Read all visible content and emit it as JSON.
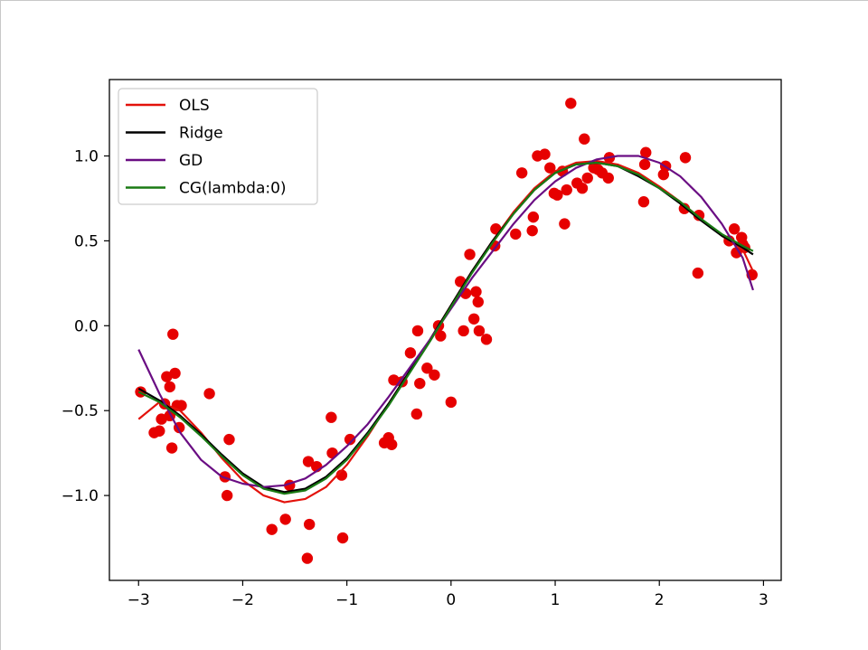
{
  "chart_data": {
    "type": "scatter",
    "title": "",
    "xlabel": "",
    "ylabel": "",
    "xlim": [
      -3.28,
      3.17
    ],
    "ylim": [
      -1.5,
      1.45
    ],
    "xticks": [
      -3,
      -2,
      -1,
      0,
      1,
      2,
      3
    ],
    "yticks": [
      -1.0,
      -0.5,
      0.0,
      0.5,
      1.0
    ],
    "xtick_labels": [
      "−3",
      "−2",
      "−1",
      "0",
      "1",
      "2",
      "3"
    ],
    "ytick_labels": [
      "−1.0",
      "−0.5",
      "0.0",
      "0.5",
      "1.0"
    ],
    "legend_position": "upper-left",
    "grid": false,
    "scatter_points": {
      "color": "#e60000",
      "x": [
        -2.98,
        -2.85,
        -2.8,
        -2.78,
        -2.75,
        -2.73,
        -2.7,
        -2.68,
        -2.65,
        -2.63,
        -2.61,
        -2.59,
        -2.7,
        -2.67,
        -2.32,
        -2.17,
        -2.15,
        -2.13,
        -1.72,
        -1.59,
        -1.55,
        -1.38,
        -1.36,
        -1.37,
        -1.29,
        -1.15,
        -1.14,
        -1.04,
        -1.05,
        -0.97,
        -0.64,
        -0.6,
        -0.57,
        -0.55,
        -0.47,
        -0.39,
        -0.33,
        -0.32,
        -0.3,
        -0.23,
        -0.16,
        -0.12,
        -0.1,
        0.0,
        0.09,
        0.12,
        0.14,
        0.18,
        0.22,
        0.24,
        0.26,
        0.27,
        0.34,
        0.42,
        0.43,
        0.62,
        0.68,
        0.78,
        0.79,
        0.83,
        0.9,
        0.95,
        0.99,
        1.02,
        1.07,
        1.09,
        1.11,
        1.15,
        1.21,
        1.26,
        1.28,
        1.31,
        1.37,
        1.41,
        1.45,
        1.51,
        1.52,
        1.86,
        1.87,
        1.85,
        2.04,
        2.06,
        2.24,
        2.25,
        2.37,
        2.38,
        2.67,
        2.72,
        2.74,
        2.79,
        2.8,
        2.82,
        2.89
      ],
      "y": [
        -0.39,
        -0.63,
        -0.62,
        -0.55,
        -0.46,
        -0.3,
        -0.36,
        -0.72,
        -0.28,
        -0.47,
        -0.6,
        -0.47,
        -0.53,
        -0.05,
        -0.4,
        -0.89,
        -1.0,
        -0.67,
        -1.2,
        -1.14,
        -0.94,
        -1.37,
        -1.17,
        -0.8,
        -0.83,
        -0.54,
        -0.75,
        -1.25,
        -0.88,
        -0.67,
        -0.69,
        -0.66,
        -0.7,
        -0.32,
        -0.33,
        -0.16,
        -0.52,
        -0.03,
        -0.34,
        -0.25,
        -0.29,
        0.0,
        -0.06,
        -0.45,
        0.26,
        -0.03,
        0.19,
        0.42,
        0.04,
        0.2,
        0.14,
        -0.03,
        -0.08,
        0.47,
        0.57,
        0.54,
        0.9,
        0.56,
        0.64,
        1.0,
        1.01,
        0.93,
        0.78,
        0.77,
        0.91,
        0.6,
        0.8,
        1.31,
        0.84,
        0.81,
        1.1,
        0.87,
        0.93,
        0.92,
        0.9,
        0.87,
        0.99,
        0.95,
        1.02,
        0.73,
        0.89,
        0.94,
        0.69,
        0.99,
        0.31,
        0.65,
        0.5,
        0.57,
        0.43,
        0.52,
        0.48,
        0.46,
        0.3
      ]
    },
    "series": [
      {
        "name": "OLS",
        "color": "#e3120b",
        "x": [
          -3.0,
          -2.8,
          -2.6,
          -2.4,
          -2.2,
          -2.0,
          -1.8,
          -1.6,
          -1.4,
          -1.2,
          -1.0,
          -0.8,
          -0.6,
          -0.4,
          -0.2,
          0.0,
          0.2,
          0.4,
          0.6,
          0.8,
          1.0,
          1.2,
          1.4,
          1.6,
          1.8,
          2.0,
          2.2,
          2.4,
          2.6,
          2.8,
          2.9
        ],
        "y": [
          -0.55,
          -0.45,
          -0.5,
          -0.63,
          -0.78,
          -0.91,
          -1.0,
          -1.04,
          -1.02,
          -0.95,
          -0.82,
          -0.65,
          -0.46,
          -0.27,
          -0.08,
          0.12,
          0.32,
          0.5,
          0.67,
          0.81,
          0.91,
          0.96,
          0.97,
          0.95,
          0.9,
          0.82,
          0.73,
          0.63,
          0.53,
          0.45,
          0.32
        ]
      },
      {
        "name": "Ridge",
        "color": "#000000",
        "x": [
          -3.0,
          -2.8,
          -2.6,
          -2.4,
          -2.2,
          -2.0,
          -1.8,
          -1.6,
          -1.4,
          -1.2,
          -1.0,
          -0.8,
          -0.6,
          -0.4,
          -0.2,
          0.0,
          0.2,
          0.4,
          0.6,
          0.8,
          1.0,
          1.2,
          1.4,
          1.6,
          1.8,
          2.0,
          2.2,
          2.4,
          2.6,
          2.8,
          2.9
        ],
        "y": [
          -0.37,
          -0.44,
          -0.53,
          -0.64,
          -0.76,
          -0.87,
          -0.95,
          -0.98,
          -0.96,
          -0.89,
          -0.78,
          -0.63,
          -0.46,
          -0.27,
          -0.08,
          0.12,
          0.32,
          0.5,
          0.66,
          0.8,
          0.9,
          0.95,
          0.96,
          0.94,
          0.88,
          0.81,
          0.72,
          0.62,
          0.53,
          0.46,
          0.42
        ]
      },
      {
        "name": "GD",
        "color": "#6a0d83",
        "x": [
          -3.0,
          -2.8,
          -2.6,
          -2.4,
          -2.2,
          -2.0,
          -1.8,
          -1.6,
          -1.4,
          -1.2,
          -1.0,
          -0.8,
          -0.6,
          -0.4,
          -0.2,
          0.0,
          0.2,
          0.4,
          0.6,
          0.8,
          1.0,
          1.2,
          1.4,
          1.6,
          1.8,
          2.0,
          2.2,
          2.4,
          2.6,
          2.8,
          2.9
        ],
        "y": [
          -0.14,
          -0.4,
          -0.63,
          -0.79,
          -0.89,
          -0.93,
          -0.95,
          -0.94,
          -0.9,
          -0.82,
          -0.71,
          -0.58,
          -0.42,
          -0.25,
          -0.08,
          0.1,
          0.28,
          0.44,
          0.6,
          0.74,
          0.85,
          0.93,
          0.98,
          1.0,
          1.0,
          0.96,
          0.88,
          0.76,
          0.6,
          0.4,
          0.21
        ]
      },
      {
        "name": "CG(lambda:0)",
        "color": "#1a7a14",
        "x": [
          -3.0,
          -2.8,
          -2.6,
          -2.4,
          -2.2,
          -2.0,
          -1.8,
          -1.6,
          -1.4,
          -1.2,
          -1.0,
          -0.8,
          -0.6,
          -0.4,
          -0.2,
          0.0,
          0.2,
          0.4,
          0.6,
          0.8,
          1.0,
          1.2,
          1.4,
          1.6,
          1.8,
          2.0,
          2.2,
          2.4,
          2.6,
          2.8,
          2.9
        ],
        "y": [
          -0.39,
          -0.45,
          -0.54,
          -0.65,
          -0.77,
          -0.88,
          -0.96,
          -0.99,
          -0.97,
          -0.9,
          -0.79,
          -0.64,
          -0.47,
          -0.28,
          -0.09,
          0.11,
          0.31,
          0.49,
          0.66,
          0.8,
          0.9,
          0.95,
          0.96,
          0.94,
          0.89,
          0.81,
          0.73,
          0.63,
          0.54,
          0.47,
          0.44
        ]
      }
    ]
  }
}
